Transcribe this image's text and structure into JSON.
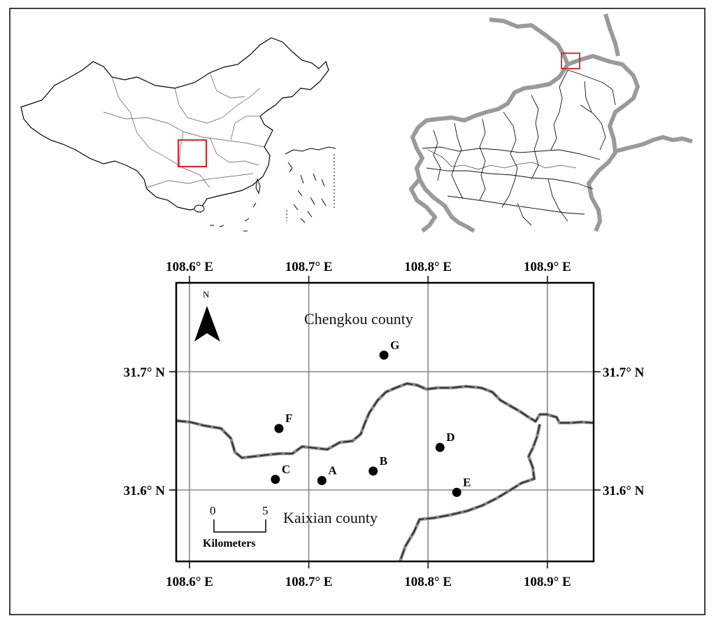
{
  "map": {
    "overview_inset": {
      "region": "China",
      "highlight_color": "#e02020"
    },
    "regional_inset": {
      "region": "Chongqing",
      "highlight_color": "#e02020"
    },
    "main": {
      "x_ticks": [
        "108.6° E",
        "108.7° E",
        "108.8° E",
        "108.9° E"
      ],
      "y_ticks": [
        "31.7° N",
        "31.6° N"
      ],
      "north_label": "N",
      "counties": {
        "north": "Chengkou  county",
        "south": "Kaixian county"
      },
      "sites": [
        {
          "id": "A",
          "lon": 108.711,
          "lat": 31.608
        },
        {
          "id": "B",
          "lon": 108.754,
          "lat": 31.616
        },
        {
          "id": "C",
          "lon": 108.672,
          "lat": 31.609
        },
        {
          "id": "D",
          "lon": 108.81,
          "lat": 31.636
        },
        {
          "id": "E",
          "lon": 108.824,
          "lat": 31.598
        },
        {
          "id": "F",
          "lon": 108.675,
          "lat": 31.652
        },
        {
          "id": "G",
          "lon": 108.763,
          "lat": 31.714
        }
      ],
      "scale_bar": {
        "start": "0",
        "end": "5",
        "unit": "Kilometers"
      },
      "colors": {
        "grid": "#888888",
        "boundary_outer": "#8a8a8a",
        "boundary_inner": "#222222",
        "site": "#000000"
      }
    }
  }
}
